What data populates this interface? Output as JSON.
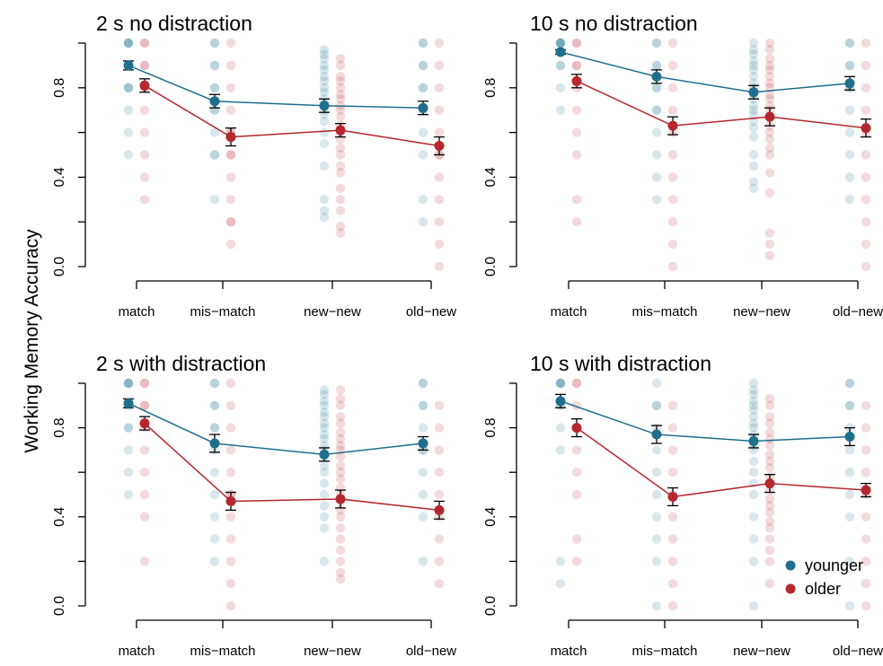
{
  "figure": {
    "ylabel": "Working Memory Accuracy",
    "legend": {
      "placement": "bottom-right of last panel",
      "items": [
        {
          "label": "younger",
          "color": "#1f6e8c"
        },
        {
          "label": "older",
          "color": "#b5262d"
        }
      ]
    },
    "colors": {
      "younger": "#1f6e8c",
      "older": "#b5262d"
    }
  },
  "chart_data": [
    {
      "type": "scatter",
      "title": "2 s no distraction",
      "categories": [
        "match",
        "mis−match",
        "new−new",
        "old−new"
      ],
      "ylabel": "Working Memory Accuracy",
      "ylim": [
        0,
        1
      ],
      "yticks": [
        "0.0",
        "0.4",
        "0.8"
      ],
      "series": [
        {
          "name": "younger",
          "means": [
            0.9,
            0.74,
            0.72,
            0.71
          ],
          "errors": [
            0.02,
            0.03,
            0.03,
            0.03
          ],
          "raw": [
            [
              1,
              1,
              1,
              1,
              0.9,
              0.9,
              0.9,
              0.8,
              0.8,
              0.8,
              0.7,
              0.6,
              0.5
            ],
            [
              1,
              1,
              0.9,
              0.9,
              0.8,
              0.8,
              0.7,
              0.7,
              0.6,
              0.5,
              0.5,
              0.3
            ],
            [
              0.97,
              0.95,
              0.93,
              0.9,
              0.88,
              0.85,
              0.83,
              0.8,
              0.78,
              0.75,
              0.73,
              0.7,
              0.68,
              0.65,
              0.6,
              0.55,
              0.45,
              0.3,
              0.25,
              0.22
            ],
            [
              1,
              1,
              0.9,
              0.9,
              0.8,
              0.8,
              0.7,
              0.7,
              0.6,
              0.5,
              0.3,
              0.2
            ]
          ]
        },
        {
          "name": "older",
          "means": [
            0.81,
            0.58,
            0.61,
            0.54
          ],
          "errors": [
            0.03,
            0.04,
            0.03,
            0.04
          ],
          "raw": [
            [
              1,
              1,
              0.9,
              0.9,
              0.8,
              0.8,
              0.7,
              0.6,
              0.5,
              0.4,
              0.3
            ],
            [
              1,
              0.9,
              0.8,
              0.7,
              0.6,
              0.6,
              0.5,
              0.5,
              0.4,
              0.3,
              0.2,
              0.2,
              0.1
            ],
            [
              0.93,
              0.9,
              0.85,
              0.83,
              0.8,
              0.77,
              0.75,
              0.72,
              0.7,
              0.67,
              0.63,
              0.6,
              0.57,
              0.53,
              0.5,
              0.45,
              0.42,
              0.35,
              0.3,
              0.25,
              0.18,
              0.15
            ],
            [
              1,
              0.9,
              0.8,
              0.7,
              0.6,
              0.5,
              0.5,
              0.4,
              0.3,
              0.2,
              0.1,
              0.0
            ]
          ]
        }
      ]
    },
    {
      "type": "scatter",
      "title": "10 s no distraction",
      "categories": [
        "match",
        "mis−match",
        "new−new",
        "old−new"
      ],
      "ylim": [
        0,
        1
      ],
      "yticks": [
        "0.0",
        "0.4",
        "0.8"
      ],
      "series": [
        {
          "name": "younger",
          "means": [
            0.96,
            0.85,
            0.78,
            0.82
          ],
          "errors": [
            0.01,
            0.03,
            0.03,
            0.03
          ],
          "raw": [
            [
              1,
              1,
              1,
              1,
              1,
              0.9,
              0.9,
              0.8,
              0.7
            ],
            [
              1,
              1,
              0.9,
              0.9,
              0.8,
              0.8,
              0.7,
              0.7,
              0.6,
              0.5,
              0.4,
              0.3
            ],
            [
              1,
              0.97,
              0.95,
              0.92,
              0.9,
              0.88,
              0.85,
              0.82,
              0.8,
              0.77,
              0.75,
              0.72,
              0.7,
              0.68,
              0.65,
              0.62,
              0.58,
              0.5,
              0.45,
              0.38,
              0.35
            ],
            [
              1,
              1,
              0.9,
              0.9,
              0.8,
              0.8,
              0.7,
              0.6,
              0.5,
              0.4,
              0.3
            ]
          ]
        },
        {
          "name": "older",
          "means": [
            0.83,
            0.63,
            0.67,
            0.62
          ],
          "errors": [
            0.03,
            0.04,
            0.04,
            0.04
          ],
          "raw": [
            [
              1,
              1,
              0.9,
              0.9,
              0.8,
              0.7,
              0.6,
              0.5,
              0.3,
              0.2
            ],
            [
              1,
              0.9,
              0.8,
              0.7,
              0.6,
              0.5,
              0.4,
              0.3,
              0.2,
              0.1,
              0.0
            ],
            [
              1,
              0.97,
              0.93,
              0.9,
              0.88,
              0.85,
              0.82,
              0.8,
              0.77,
              0.75,
              0.72,
              0.7,
              0.67,
              0.63,
              0.6,
              0.57,
              0.53,
              0.5,
              0.42,
              0.33,
              0.15,
              0.1,
              0.05
            ],
            [
              1,
              0.9,
              0.8,
              0.7,
              0.6,
              0.5,
              0.4,
              0.3,
              0.2,
              0.1,
              0.0
            ]
          ]
        }
      ]
    },
    {
      "type": "scatter",
      "title": "2 s with distraction",
      "categories": [
        "match",
        "mis−match",
        "new−new",
        "old−new"
      ],
      "ylim": [
        0,
        1
      ],
      "yticks": [
        "0.0",
        "0.4",
        "0.8"
      ],
      "series": [
        {
          "name": "younger",
          "means": [
            0.91,
            0.73,
            0.68,
            0.73
          ],
          "errors": [
            0.02,
            0.04,
            0.03,
            0.03
          ],
          "raw": [
            [
              1,
              1,
              1,
              1,
              0.9,
              0.9,
              0.8,
              0.8,
              0.7,
              0.6,
              0.5
            ],
            [
              1,
              1,
              0.9,
              0.9,
              0.8,
              0.8,
              0.7,
              0.6,
              0.5,
              0.4,
              0.3,
              0.2
            ],
            [
              0.97,
              0.95,
              0.92,
              0.9,
              0.87,
              0.85,
              0.82,
              0.8,
              0.77,
              0.75,
              0.72,
              0.7,
              0.67,
              0.63,
              0.6,
              0.55,
              0.5,
              0.45,
              0.4,
              0.35,
              0.2
            ],
            [
              1,
              1,
              0.9,
              0.9,
              0.8,
              0.7,
              0.7,
              0.6,
              0.5,
              0.4,
              0.2
            ]
          ]
        },
        {
          "name": "older",
          "means": [
            0.82,
            0.47,
            0.48,
            0.43
          ],
          "errors": [
            0.03,
            0.04,
            0.04,
            0.04
          ],
          "raw": [
            [
              1,
              1,
              0.9,
              0.9,
              0.8,
              0.7,
              0.6,
              0.5,
              0.4,
              0.2
            ],
            [
              1,
              0.9,
              0.8,
              0.7,
              0.6,
              0.5,
              0.5,
              0.4,
              0.3,
              0.2,
              0.1,
              0.0
            ],
            [
              0.97,
              0.93,
              0.9,
              0.85,
              0.82,
              0.78,
              0.75,
              0.72,
              0.7,
              0.67,
              0.63,
              0.6,
              0.57,
              0.53,
              0.5,
              0.47,
              0.43,
              0.4,
              0.35,
              0.3,
              0.25,
              0.2,
              0.15,
              0.12
            ],
            [
              0.9,
              0.8,
              0.7,
              0.6,
              0.5,
              0.4,
              0.3,
              0.2,
              0.1
            ]
          ]
        }
      ]
    },
    {
      "type": "scatter",
      "title": "10 s with distraction",
      "categories": [
        "match",
        "mis−match",
        "new−new",
        "old−new"
      ],
      "ylim": [
        0,
        1
      ],
      "yticks": [
        "0.0",
        "0.4",
        "0.8"
      ],
      "series": [
        {
          "name": "younger",
          "means": [
            0.92,
            0.77,
            0.74,
            0.76
          ],
          "errors": [
            0.03,
            0.04,
            0.03,
            0.04
          ],
          "raw": [
            [
              1,
              1,
              1,
              1,
              0.9,
              0.9,
              0.8,
              0.7,
              0.2,
              0.1
            ],
            [
              1,
              0.9,
              0.9,
              0.8,
              0.7,
              0.6,
              0.5,
              0.4,
              0.3,
              0.2,
              0.0
            ],
            [
              1,
              0.97,
              0.95,
              0.92,
              0.9,
              0.88,
              0.85,
              0.82,
              0.8,
              0.77,
              0.75,
              0.72,
              0.7,
              0.65,
              0.6,
              0.55,
              0.5,
              0.4,
              0.3,
              0.2,
              0.0
            ],
            [
              1,
              1,
              0.9,
              0.9,
              0.8,
              0.7,
              0.6,
              0.5,
              0.4,
              0.2,
              0.0
            ]
          ]
        },
        {
          "name": "older",
          "means": [
            0.8,
            0.49,
            0.55,
            0.52
          ],
          "errors": [
            0.04,
            0.04,
            0.04,
            0.03
          ],
          "raw": [
            [
              1,
              1,
              0.9,
              0.8,
              0.7,
              0.6,
              0.5,
              0.3,
              0.2
            ],
            [
              0.9,
              0.8,
              0.7,
              0.6,
              0.5,
              0.4,
              0.3,
              0.2,
              0.1,
              0.0
            ],
            [
              0.93,
              0.9,
              0.85,
              0.82,
              0.78,
              0.75,
              0.72,
              0.68,
              0.65,
              0.62,
              0.58,
              0.55,
              0.52,
              0.48,
              0.45,
              0.42,
              0.38,
              0.35,
              0.3,
              0.25,
              0.2,
              0.1
            ],
            [
              0.9,
              0.8,
              0.7,
              0.6,
              0.5,
              0.4,
              0.3,
              0.2,
              0.1,
              0.0
            ]
          ]
        }
      ]
    }
  ]
}
